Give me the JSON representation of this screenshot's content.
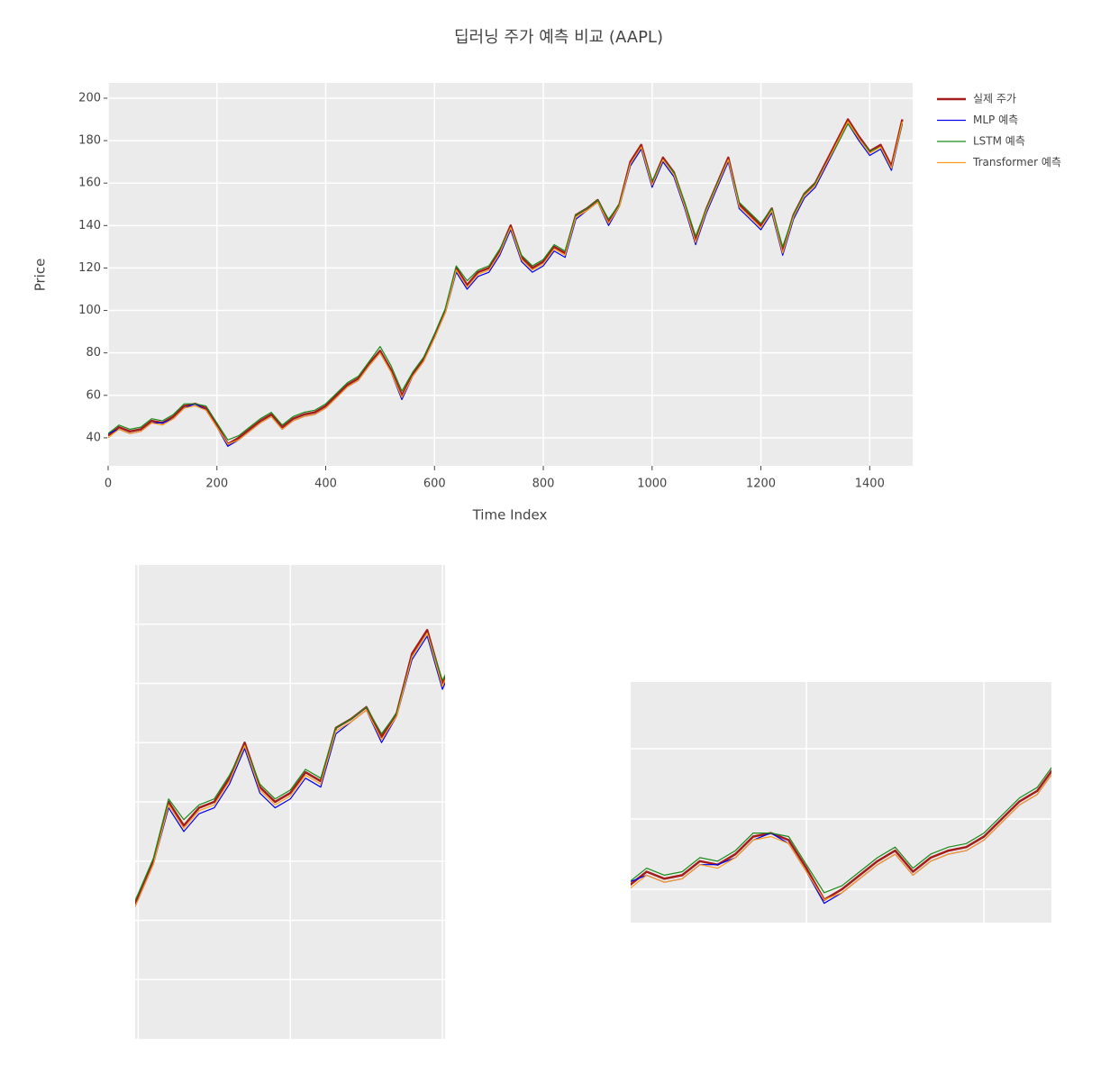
{
  "chart_data": [
    {
      "type": "line",
      "title": "딥러닝 주가 예측 비교 (AAPL)",
      "x_label": "Time Index",
      "y_label": "Price",
      "x": [
        0,
        20,
        40,
        60,
        80,
        100,
        120,
        140,
        160,
        180,
        200,
        220,
        240,
        260,
        280,
        300,
        320,
        340,
        360,
        380,
        400,
        420,
        440,
        460,
        480,
        500,
        520,
        540,
        560,
        580,
        600,
        620,
        640,
        660,
        680,
        700,
        720,
        740,
        760,
        780,
        800,
        820,
        840,
        860,
        880,
        900,
        920,
        940,
        960,
        980,
        1000,
        1020,
        1040,
        1060,
        1080,
        1100,
        1120,
        1140,
        1160,
        1180,
        1200,
        1220,
        1240,
        1260,
        1280,
        1300,
        1320,
        1340,
        1360,
        1380,
        1400,
        1420,
        1440,
        1460
      ],
      "xlim": [
        0,
        1479
      ],
      "ylim": [
        26.8,
        207.2
      ],
      "xticks": [
        0,
        200,
        400,
        600,
        800,
        1000,
        1200,
        1400
      ],
      "yticks": [
        40,
        60,
        80,
        100,
        120,
        140,
        160,
        180,
        200
      ],
      "grid": true,
      "legend": "outside-right",
      "series": [
        {
          "name": "실제 주가",
          "color": "#a51c1c",
          "width": 2.5,
          "values": [
            41,
            45,
            43,
            44,
            48,
            47,
            50,
            55,
            56,
            54,
            46,
            37,
            40,
            44,
            48,
            51,
            45,
            49,
            51,
            52,
            55,
            60,
            65,
            68,
            75,
            81,
            72,
            60,
            70,
            77,
            88,
            100,
            120,
            112,
            118,
            120,
            128,
            140,
            125,
            120,
            123,
            130,
            127,
            145,
            148,
            152,
            142,
            150,
            170,
            178,
            160,
            172,
            165,
            150,
            133,
            148,
            160,
            172,
            150,
            145,
            140,
            148,
            128,
            145,
            155,
            160,
            170,
            180,
            190,
            182,
            175,
            178,
            168,
            190
          ]
        },
        {
          "name": "MLP 예측",
          "color": "#0000ee",
          "width": 1.2,
          "values": [
            42,
            44,
            42,
            43,
            47,
            47,
            49,
            54,
            56,
            53,
            45,
            36,
            39,
            43,
            47,
            50,
            44,
            48,
            50,
            51,
            54,
            59,
            64,
            67,
            74,
            80,
            71,
            58,
            69,
            76,
            87,
            99,
            118,
            110,
            116,
            118,
            126,
            138,
            123,
            118,
            121,
            128,
            125,
            143,
            147,
            151,
            140,
            149,
            168,
            176,
            158,
            170,
            163,
            148,
            131,
            146,
            158,
            170,
            148,
            143,
            138,
            146,
            126,
            143,
            153,
            158,
            168,
            178,
            188,
            180,
            173,
            176,
            166,
            188
          ]
        },
        {
          "name": "LSTM 예측",
          "color": "#1a8a1a",
          "width": 1.2,
          "values": [
            42,
            46,
            44,
            45,
            49,
            48,
            51,
            56,
            56,
            55,
            47,
            39,
            41,
            45,
            49,
            52,
            46,
            50,
            52,
            53,
            56,
            61,
            66,
            69,
            76,
            83,
            74,
            62,
            71,
            78,
            89,
            101,
            121,
            114,
            119,
            121,
            129,
            139,
            126,
            121,
            124,
            131,
            128,
            145,
            148,
            152,
            143,
            150,
            169,
            177,
            161,
            171,
            165,
            151,
            135,
            148,
            160,
            171,
            151,
            146,
            141,
            148,
            130,
            145,
            155,
            160,
            169,
            178,
            188,
            181,
            175,
            177,
            167,
            188
          ]
        },
        {
          "name": "Transformer 예측",
          "color": "#ff9d1e",
          "width": 1.2,
          "values": [
            40,
            44,
            42,
            43,
            47,
            46,
            49,
            54,
            55,
            53,
            45,
            37,
            39,
            43,
            47,
            50,
            44,
            48,
            50,
            51,
            54,
            59,
            64,
            67,
            74,
            80,
            71,
            59,
            69,
            76,
            87,
            99,
            119,
            111,
            117,
            119,
            127,
            139,
            124,
            119,
            122,
            129,
            126,
            144,
            147,
            151,
            141,
            149,
            169,
            177,
            159,
            171,
            164,
            149,
            132,
            147,
            159,
            171,
            149,
            144,
            139,
            147,
            127,
            144,
            154,
            159,
            169,
            179,
            189,
            181,
            174,
            177,
            167,
            189
          ]
        }
      ]
    },
    {
      "type": "line",
      "xlim": [
        596,
        1003.5
      ],
      "ylim": [
        40,
        200
      ],
      "xticks": [
        600,
        800,
        1000
      ],
      "yticks": [
        60,
        80,
        100,
        120,
        140,
        160,
        180
      ],
      "grid": true
    },
    {
      "type": "line",
      "xlim": [
        2,
        476
      ],
      "ylim": [
        30.5,
        99
      ],
      "xticks": [
        200,
        400
      ],
      "yticks": [
        40,
        60,
        80
      ],
      "grid": true
    }
  ]
}
